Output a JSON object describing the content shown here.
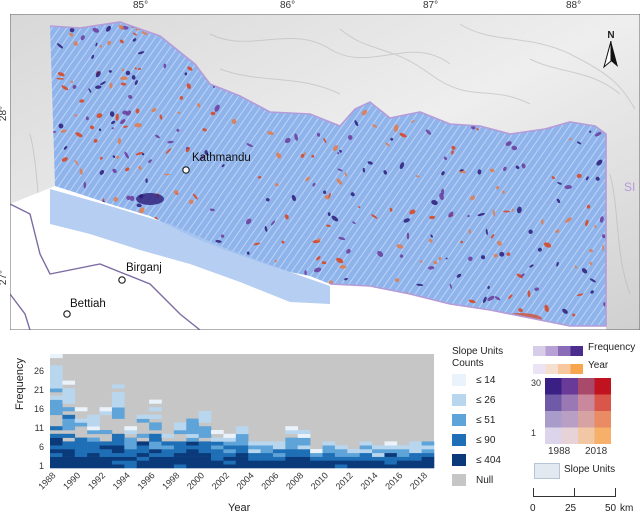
{
  "map": {
    "lon_ticks": [
      "85°",
      "86°",
      "87°",
      "88°"
    ],
    "lat_ticks": [
      "28°",
      "27°"
    ],
    "cities": [
      "Kathmandu",
      "Birganj",
      "Bettiah"
    ],
    "clipped_label": "SI",
    "north_arrow": "N",
    "colors": {
      "slope_fill": "#8fb4ec",
      "hi_frequency": "#2b1a78",
      "hi_year": "#d9431c",
      "border": "#b59bd8",
      "road": "#7d6ca4"
    }
  },
  "heatmap": {
    "ylabel": "Frequency",
    "xlabel": "Year",
    "y_ticks": [
      "26",
      "21",
      "16",
      "11",
      "6",
      "1"
    ],
    "x_ticks": [
      "1988",
      "1990",
      "1992",
      "1994",
      "1996",
      "1998",
      "2000",
      "2002",
      "2004",
      "2006",
      "2008",
      "2010",
      "2012",
      "2014",
      "2016",
      "2018"
    ],
    "background": "#c6c6c6",
    "bins": [
      {
        "label": "≤ 14",
        "color": "#eaf3fb"
      },
      {
        "label": "≤ 26",
        "color": "#b9d6ef"
      },
      {
        "label": "≤ 51",
        "color": "#5ea4d9"
      },
      {
        "label": "≤ 90",
        "color": "#1f6fb6"
      },
      {
        "label": "≤ 404",
        "color": "#0b3a7a"
      },
      {
        "label": "Null",
        "color": "#c6c6c6"
      }
    ]
  },
  "legend": {
    "title": "Slope Units\nCounts",
    "frequency_label": "Frequency",
    "year_label": "Year",
    "frequency_colors": [
      "#d8cde8",
      "#b7a1d4",
      "#8a6bb8",
      "#4a2d8c"
    ],
    "year_colors": [
      "#ece4f4",
      "#f5e0d0",
      "#f8c79d",
      "#f7a64e"
    ],
    "bivariate_top": "30",
    "bivariate_bottom": "1",
    "bivariate_left": "1988",
    "bivariate_right": "2018",
    "bivariate_colors": [
      [
        "#3a1f84",
        "#6a3a99",
        "#a94a6a",
        "#c1121f"
      ],
      [
        "#6f5aa8",
        "#9a78b3",
        "#c9889b",
        "#d9564a"
      ],
      [
        "#a99ccb",
        "#b99fc4",
        "#d6a3a2",
        "#e98b63"
      ],
      [
        "#dcd4ea",
        "#e7d3d7",
        "#f2c7a4",
        "#f7b06a"
      ]
    ],
    "slope_units_label": "Slope Units",
    "slope_units_color": "#e3e9f1"
  },
  "scale_bar": {
    "ticks": [
      "0",
      "25",
      "50"
    ],
    "unit": "km"
  }
}
